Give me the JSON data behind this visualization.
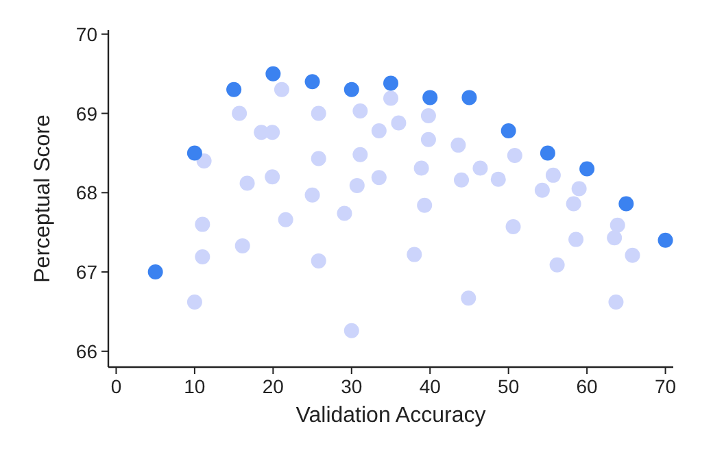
{
  "chart_data": {
    "type": "scatter",
    "xlabel": "Validation Accuracy",
    "ylabel": "Perceptual Score",
    "xlim": [
      -1,
      71
    ],
    "ylim": [
      65.8,
      70.05
    ],
    "xticks": [
      0,
      10,
      20,
      30,
      40,
      50,
      60,
      70
    ],
    "yticks": [
      66,
      67,
      68,
      69,
      70
    ],
    "grid": false,
    "marker": "circle",
    "series": [
      {
        "color": "#ccd4fb",
        "x": [
          11.2,
          15.7,
          18.5,
          19.9,
          21.1,
          25.8,
          31.1,
          16.7,
          19.9,
          25.8,
          31.1,
          33.5,
          11.0,
          21.6,
          25,
          30.7,
          33.5,
          29.1,
          11.0,
          16.1,
          25.8,
          10,
          30,
          35,
          36,
          39.8,
          39.8,
          43.6,
          38.9,
          44,
          46.4,
          48.7,
          50.8,
          39.3,
          38,
          50.6,
          44.9,
          55.7,
          54.3,
          59,
          58.3,
          58.6,
          56.2,
          63.9,
          63.5,
          65.8,
          63.7
        ],
        "values": [
          68.4,
          69.0,
          68.76,
          68.76,
          69.3,
          69.0,
          69.03,
          68.12,
          68.2,
          68.43,
          68.48,
          68.78,
          67.6,
          67.66,
          67.97,
          68.09,
          68.19,
          67.74,
          67.19,
          67.33,
          67.14,
          66.62,
          66.26,
          69.19,
          68.88,
          68.97,
          68.67,
          68.6,
          68.31,
          68.16,
          68.31,
          68.17,
          68.47,
          67.84,
          67.22,
          67.57,
          66.67,
          68.22,
          68.03,
          68.05,
          67.86,
          67.41,
          67.09,
          67.59,
          67.43,
          67.21,
          66.62
        ]
      },
      {
        "color": "#3b82f0",
        "x": [
          5,
          10,
          15,
          20,
          25,
          30,
          35,
          40,
          45,
          50,
          55,
          60,
          65,
          70
        ],
        "values": [
          67.0,
          68.5,
          69.3,
          69.5,
          69.4,
          69.3,
          69.38,
          69.2,
          69.2,
          68.78,
          68.5,
          68.3,
          67.86,
          67.4
        ]
      }
    ]
  }
}
